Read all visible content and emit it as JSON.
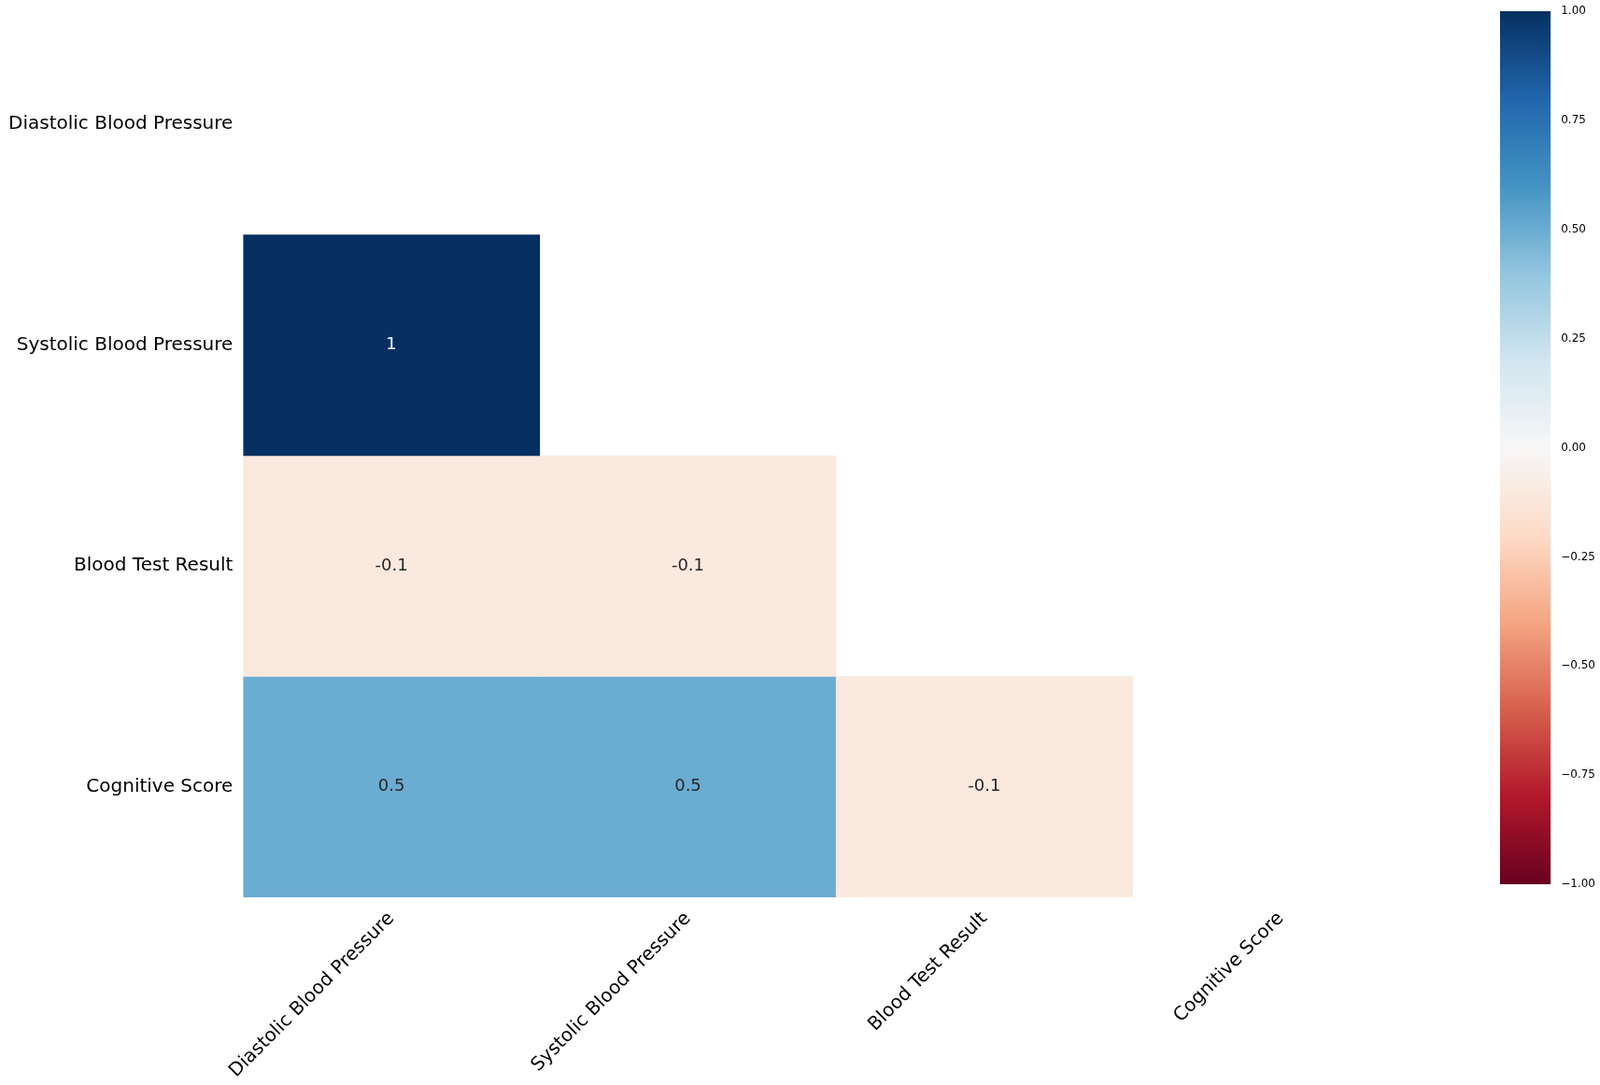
{
  "chart_data": {
    "type": "heatmap",
    "rows": [
      "Diastolic Blood Pressure",
      "Systolic Blood Pressure",
      "Blood Test Result",
      "Cognitive Score"
    ],
    "columns": [
      "Diastolic Blood Pressure",
      "Systolic Blood Pressure",
      "Blood Test Result",
      "Cognitive Score"
    ],
    "cells": [
      [
        null,
        null,
        null,
        null
      ],
      [
        1,
        null,
        null,
        null
      ],
      [
        -0.1,
        -0.1,
        null,
        null
      ],
      [
        0.5,
        0.5,
        -0.1,
        null
      ]
    ],
    "data_labels": true,
    "grid": false,
    "colorbar": {
      "range": [
        -1,
        1
      ],
      "ticks": [
        {
          "value": -1,
          "label": "−1.00"
        },
        {
          "value": -0.75,
          "label": "−0.75"
        },
        {
          "value": -0.5,
          "label": "−0.50"
        },
        {
          "value": -0.25,
          "label": "−0.25"
        },
        {
          "value": 0,
          "label": "0.00"
        },
        {
          "value": 0.25,
          "label": "0.25"
        },
        {
          "value": 0.5,
          "label": "0.50"
        },
        {
          "value": 0.75,
          "label": "0.75"
        },
        {
          "value": 1,
          "label": "1.00"
        }
      ]
    }
  }
}
